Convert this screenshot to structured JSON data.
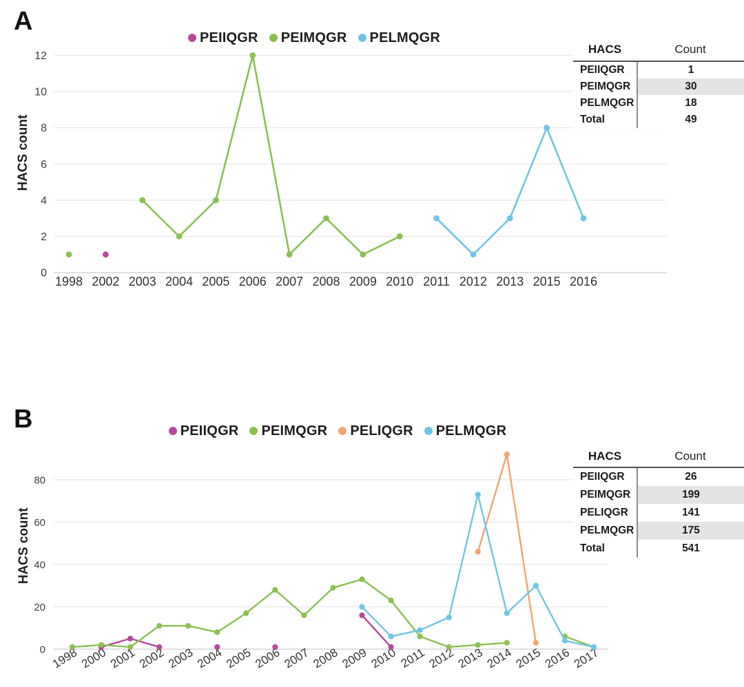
{
  "figure": {
    "panel_a_label": "A",
    "panel_b_label": "B"
  },
  "chart_data": [
    {
      "type": "line",
      "title": "",
      "xlabel": "",
      "ylabel": "HACS count",
      "ylim": [
        0,
        12
      ],
      "yticks": [
        0,
        2,
        4,
        6,
        8,
        10,
        12
      ],
      "grid": true,
      "legend_position": "top",
      "categories": [
        "1998",
        "2002",
        "2003",
        "2004",
        "2005",
        "2006",
        "2007",
        "2008",
        "2009",
        "2010",
        "2011",
        "2012",
        "2013",
        "2015",
        "2016"
      ],
      "series": [
        {
          "name": "PEIIQGR",
          "color": "#b5499c",
          "values": [
            null,
            1,
            null,
            null,
            null,
            null,
            null,
            null,
            null,
            null,
            null,
            null,
            null,
            null,
            null
          ]
        },
        {
          "name": "PEIMQGR",
          "color": "#8bc152",
          "values": [
            1,
            null,
            4,
            2,
            4,
            12,
            1,
            3,
            1,
            2,
            null,
            null,
            null,
            null,
            null
          ]
        },
        {
          "name": "PELMQGR",
          "color": "#6fc6e4",
          "values": [
            null,
            null,
            null,
            null,
            null,
            null,
            null,
            null,
            null,
            null,
            3,
            1,
            3,
            8,
            3
          ]
        }
      ]
    },
    {
      "type": "line",
      "title": "",
      "xlabel": "",
      "ylabel": "HACS count",
      "ylim": [
        0,
        95
      ],
      "yticks": [
        0,
        20,
        40,
        60,
        80
      ],
      "grid": true,
      "legend_position": "top",
      "categories": [
        "1998",
        "2000",
        "2001",
        "2002",
        "2003",
        "2004",
        "2005",
        "2006",
        "2007",
        "2008",
        "2009",
        "2010",
        "2011",
        "2012",
        "2013",
        "2014",
        "2015",
        "2016",
        "2017"
      ],
      "series": [
        {
          "name": "PEIIQGR",
          "color": "#b5499c",
          "values": [
            null,
            1,
            5,
            1,
            null,
            1,
            null,
            1,
            null,
            null,
            16,
            1,
            null,
            null,
            null,
            null,
            null,
            null,
            null
          ]
        },
        {
          "name": "PEIMQGR",
          "color": "#8bc152",
          "values": [
            1,
            2,
            1,
            11,
            11,
            8,
            17,
            28,
            16,
            29,
            33,
            23,
            6,
            1,
            2,
            3,
            null,
            6,
            1
          ]
        },
        {
          "name": "PELIQGR",
          "color": "#f2a470",
          "values": [
            null,
            null,
            null,
            null,
            null,
            null,
            null,
            null,
            null,
            null,
            null,
            null,
            null,
            null,
            46,
            92,
            3,
            null,
            null
          ]
        },
        {
          "name": "PELMQGR",
          "color": "#6fc6e4",
          "values": [
            null,
            null,
            null,
            null,
            null,
            null,
            null,
            null,
            null,
            null,
            20,
            6,
            9,
            15,
            73,
            17,
            30,
            4,
            1
          ]
        }
      ]
    }
  ],
  "tables": [
    {
      "headers": [
        "HACS",
        "Count"
      ],
      "rows": [
        [
          "PEIIQGR",
          "1"
        ],
        [
          "PEIMQGR",
          "30"
        ],
        [
          "PELMQGR",
          "18"
        ],
        [
          "Total",
          "49"
        ]
      ]
    },
    {
      "headers": [
        "HACS",
        "Count"
      ],
      "rows": [
        [
          "PEIIQGR",
          "26"
        ],
        [
          "PEIMQGR",
          "199"
        ],
        [
          "PELIQGR",
          "141"
        ],
        [
          "PELMQGR",
          "175"
        ],
        [
          "Total",
          "541"
        ]
      ]
    }
  ]
}
